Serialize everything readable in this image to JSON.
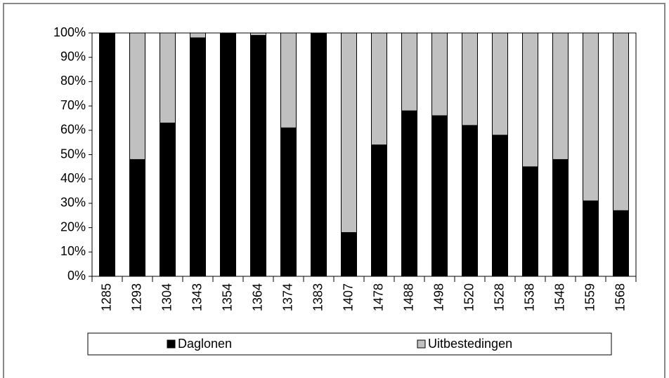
{
  "chart_data": {
    "type": "stacked_bar",
    "categories": [
      "1285",
      "1293",
      "1304",
      "1343",
      "1354",
      "1364",
      "1374",
      "1383",
      "1407",
      "1478",
      "1488",
      "1498",
      "1520",
      "1528",
      "1538",
      "1548",
      "1559",
      "1568"
    ],
    "series": [
      {
        "name": "Daglonen",
        "color": "#000000",
        "values": [
          100,
          48,
          63,
          98,
          100,
          99,
          61,
          100,
          18,
          54,
          68,
          66,
          62,
          58,
          45,
          48,
          31,
          27
        ]
      },
      {
        "name": "Uitbestedingen",
        "color": "#c0c0c0",
        "values": [
          0,
          52,
          37,
          2,
          0,
          1,
          39,
          0,
          82,
          46,
          32,
          34,
          38,
          42,
          55,
          52,
          69,
          73
        ]
      }
    ],
    "ylim": [
      0,
      100
    ],
    "yticks": [
      {
        "value": 0,
        "label": "0%"
      },
      {
        "value": 10,
        "label": "10%"
      },
      {
        "value": 20,
        "label": "20%"
      },
      {
        "value": 30,
        "label": "30%"
      },
      {
        "value": 40,
        "label": "40%"
      },
      {
        "value": 50,
        "label": "50%"
      },
      {
        "value": 60,
        "label": "60%"
      },
      {
        "value": 70,
        "label": "70%"
      },
      {
        "value": 80,
        "label": "80%"
      },
      {
        "value": 90,
        "label": "90%"
      },
      {
        "value": 100,
        "label": "100%"
      }
    ],
    "grid": false,
    "legend": "bottom"
  }
}
